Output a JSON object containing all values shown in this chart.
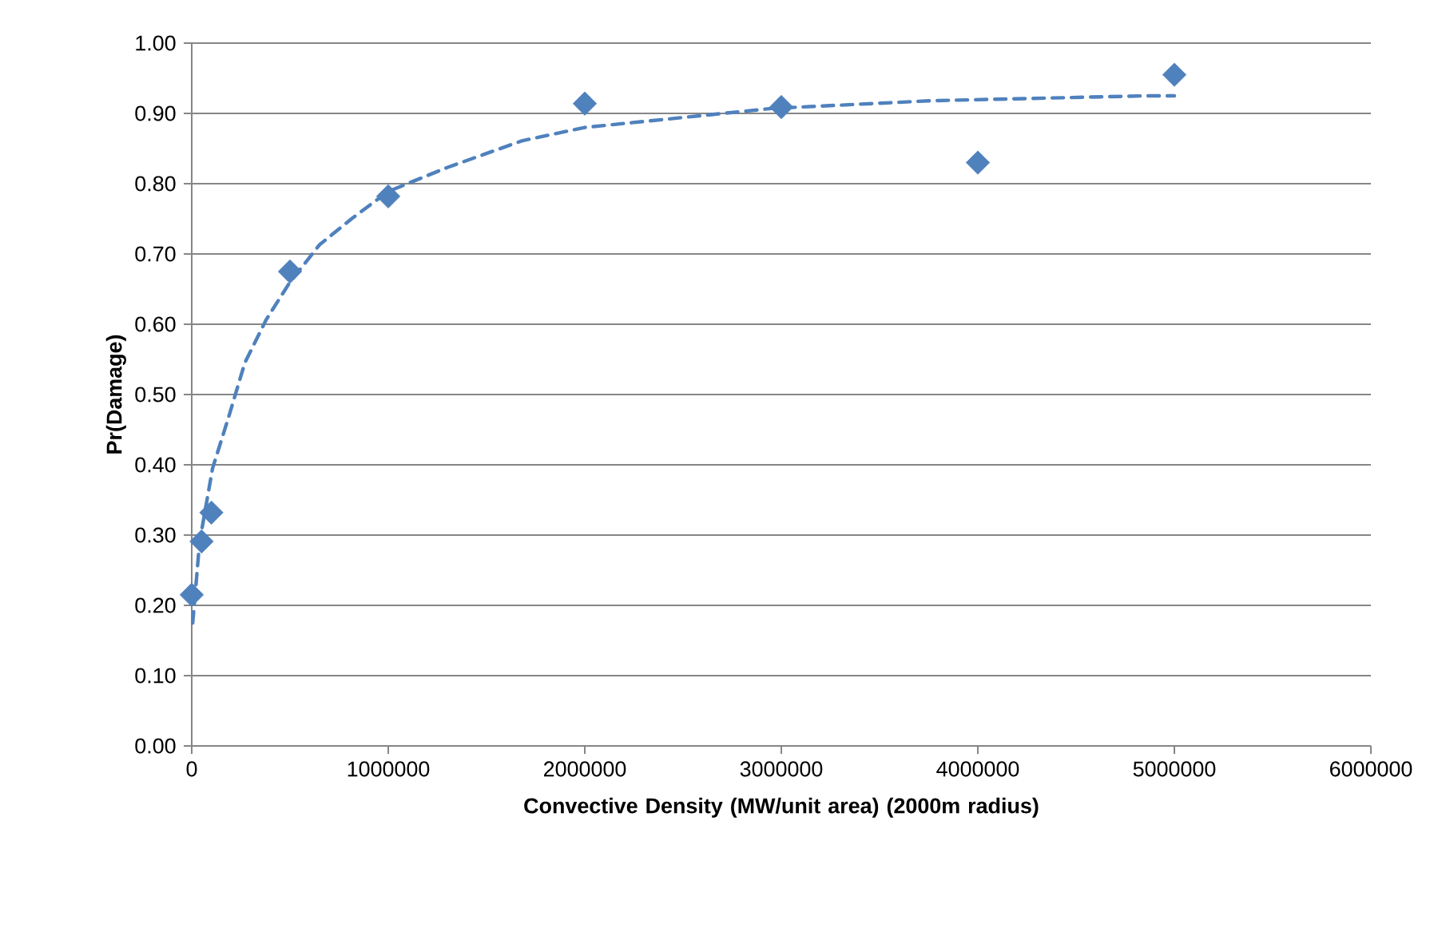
{
  "chart_data": {
    "type": "scatter",
    "xlabel": "Convective Density (MW/unit area) (2000m radius)",
    "ylabel": "Pr(Damage)",
    "xlim": [
      0,
      6000000
    ],
    "xticks": [
      0,
      1000000,
      2000000,
      3000000,
      4000000,
      5000000,
      6000000
    ],
    "ylim": [
      0,
      1
    ],
    "yticks": [
      {
        "value": 0,
        "label": "0.00"
      },
      {
        "value": 0.1,
        "label": "0.10"
      },
      {
        "value": 0.2,
        "label": "0.20"
      },
      {
        "value": 0.3,
        "label": "0.30"
      },
      {
        "value": 0.4,
        "label": "0.40"
      },
      {
        "value": 0.5,
        "label": "0.50"
      },
      {
        "value": 0.6,
        "label": "0.60"
      },
      {
        "value": 0.7,
        "label": "0.70"
      },
      {
        "value": 0.8,
        "label": "0.80"
      },
      {
        "value": 0.9,
        "label": "0.90"
      },
      {
        "value": 1,
        "label": "1.00"
      }
    ],
    "grid": "y",
    "series": [
      {
        "marker": "diamond",
        "color": "#4f81bd",
        "x": [
          0,
          50000,
          100000,
          500000,
          1000000,
          2000000,
          3000000,
          4000000,
          5000000
        ],
        "values": [
          0.215,
          0.291,
          0.332,
          0.675,
          0.782,
          0.914,
          0.909,
          0.83,
          0.955
        ]
      },
      {
        "type": "line",
        "marker": "none",
        "line_style": "dashed",
        "color": "#4f81bd",
        "x": [
          5000,
          40000,
          106000,
          190000,
          270000,
          380000,
          500000,
          650000,
          813000,
          1000000,
          1300000,
          1680000,
          2000000,
          2950000,
          3760000,
          4850000,
          5000000
        ],
        "values": [
          0.175,
          0.29,
          0.395,
          0.47,
          0.545,
          0.607,
          0.66,
          0.713,
          0.75,
          0.789,
          0.823,
          0.861,
          0.88,
          0.907,
          0.918,
          0.925,
          0.925
        ]
      }
    ]
  }
}
